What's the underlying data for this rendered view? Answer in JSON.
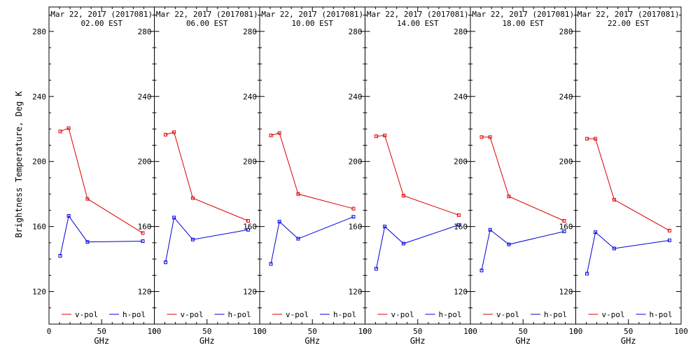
{
  "chart_data": {
    "type": "line",
    "ylabel": "Brightness Temperature, Deg K",
    "xlabel": "GHz",
    "xlim": [
      0,
      100
    ],
    "ylim": [
      100,
      295
    ],
    "xticks": [
      "0",
      "50",
      "100"
    ],
    "yticks": [
      "120",
      "160",
      "200",
      "240",
      "280"
    ],
    "x": [
      10.65,
      18.7,
      36.5,
      89
    ],
    "colors": {
      "v_pol": "#dd0000",
      "h_pol": "#0000dd",
      "frame": "#000000"
    },
    "panels": [
      {
        "title": "Mar 22, 2017 (2017081)",
        "subtitle": "02.00 EST",
        "series": [
          {
            "name": "v-pol",
            "values": [
              218.5,
              220.5,
              177,
              156
            ]
          },
          {
            "name": "h-pol",
            "values": [
              142,
              166.5,
              150.5,
              151
            ]
          }
        ]
      },
      {
        "title": "Mar 22, 2017 (2017081)",
        "subtitle": "06.00 EST",
        "series": [
          {
            "name": "v-pol",
            "values": [
              216.5,
              218,
              177.5,
              163.5
            ]
          },
          {
            "name": "h-pol",
            "values": [
              138,
              165.5,
              152,
              158
            ]
          }
        ]
      },
      {
        "title": "Mar 22, 2017 (2017081)",
        "subtitle": "10.00 EST",
        "series": [
          {
            "name": "v-pol",
            "values": [
              216,
              217.5,
              180,
              171
            ]
          },
          {
            "name": "h-pol",
            "values": [
              137,
              163,
              152.5,
              166
            ]
          }
        ]
      },
      {
        "title": "Mar 22, 2017 (2017081)",
        "subtitle": "14.00 EST",
        "series": [
          {
            "name": "v-pol",
            "values": [
              215.5,
              216,
              179,
              167
            ]
          },
          {
            "name": "h-pol",
            "values": [
              134,
              160,
              149.5,
              161
            ]
          }
        ]
      },
      {
        "title": "Mar 22, 2017 (2017081)",
        "subtitle": "18.00 EST",
        "series": [
          {
            "name": "v-pol",
            "values": [
              215,
              215,
              178.5,
              163.5
            ]
          },
          {
            "name": "h-pol",
            "values": [
              133,
              158,
              149,
              157
            ]
          }
        ]
      },
      {
        "title": "Mar 22, 2017 (2017081)",
        "subtitle": "22.00 EST",
        "series": [
          {
            "name": "v-pol",
            "values": [
              214,
              214,
              176.5,
              157.5
            ]
          },
          {
            "name": "h-pol",
            "values": [
              131,
              156.5,
              146.5,
              151.5
            ]
          }
        ]
      }
    ],
    "legend": {
      "items": [
        "v-pol",
        "h-pol"
      ],
      "placement": "bottom"
    }
  }
}
